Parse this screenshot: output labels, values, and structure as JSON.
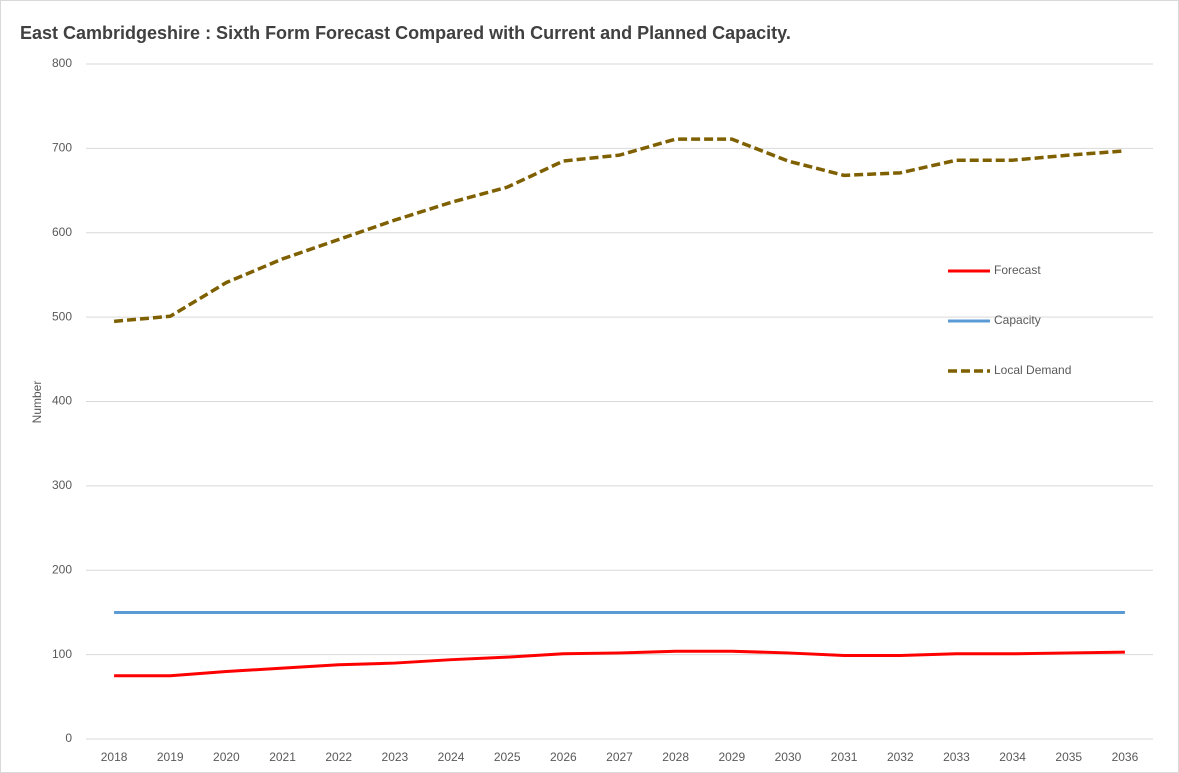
{
  "chart_data": {
    "type": "line",
    "title": "East Cambridgeshire : Sixth Form Forecast Compared with Current and Planned Capacity.",
    "y_label": "Number",
    "categories": [
      "2018",
      "2019",
      "2020",
      "2021",
      "2022",
      "2023",
      "2024",
      "2025",
      "2026",
      "2027",
      "2028",
      "2029",
      "2030",
      "2031",
      "2032",
      "2033",
      "2034",
      "2035",
      "2036"
    ],
    "series": [
      {
        "name": "Forecast",
        "color": "#ff0000",
        "dash": false,
        "values": [
          75,
          75,
          80,
          84,
          88,
          90,
          94,
          97,
          101,
          102,
          104,
          104,
          102,
          99,
          99,
          101,
          101,
          102,
          103
        ]
      },
      {
        "name": "Capacity",
        "color": "#5b9bd5",
        "dash": false,
        "values": [
          150,
          150,
          150,
          150,
          150,
          150,
          150,
          150,
          150,
          150,
          150,
          150,
          150,
          150,
          150,
          150,
          150,
          150,
          150
        ]
      },
      {
        "name": "Local Demand",
        "color": "#7f6000",
        "dash": true,
        "values": [
          495,
          501,
          541,
          569,
          592,
          615,
          636,
          654,
          685,
          692,
          711,
          711,
          685,
          668,
          671,
          686,
          686,
          692,
          697
        ]
      }
    ],
    "ylim": [
      0,
      800
    ],
    "yticks": [
      0,
      100,
      200,
      300,
      400,
      500,
      600,
      700,
      800
    ],
    "grid": true
  }
}
